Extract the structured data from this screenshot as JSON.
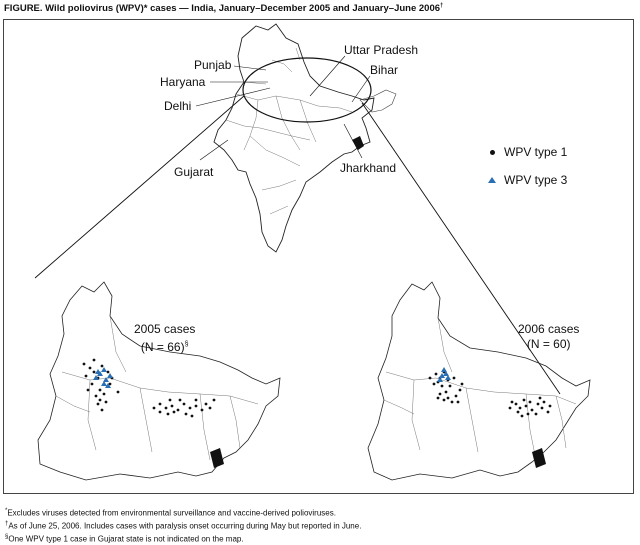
{
  "title": "FIGURE. Wild poliovirus (WPV)* cases — India, January–December 2005 and January–June 2006",
  "title_mark": "†",
  "labels": {
    "punjab": "Punjab",
    "haryana": "Haryana",
    "delhi": "Delhi",
    "gujarat": "Gujarat",
    "uttar_pradesh": "Uttar Pradesh",
    "bihar": "Bihar",
    "jharkhand": "Jharkhand"
  },
  "legend": {
    "type1": "WPV type 1",
    "type3": "WPV type 3",
    "type1_color": "#111111",
    "type3_color": "#2a6fb4"
  },
  "panel_2005": {
    "title": "2005 cases",
    "n": "(N = 66)",
    "mark": "§"
  },
  "panel_2006": {
    "title": "2006 cases",
    "n": "(N = 60)"
  },
  "footnotes": {
    "f1_mark": "*",
    "f1": "Excludes viruses detected from environmental surveillance and vaccine-derived polioviruses.",
    "f2_mark": "†",
    "f2": "As of June 25, 2006. Includes cases with paralysis onset occurring during May but reported in June.",
    "f3_mark": "§",
    "f3": "One WPV type 1 case in Gujarat state is not indicated on the map."
  }
}
